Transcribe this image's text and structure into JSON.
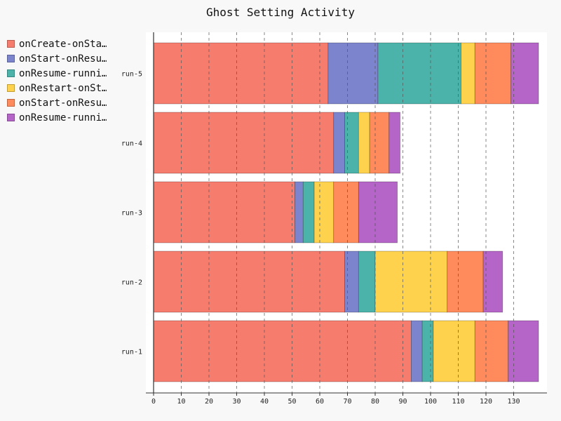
{
  "chart_data": {
    "type": "bar",
    "orientation": "horizontal",
    "stacked": true,
    "title": "Ghost Setting Activity",
    "categories": [
      "run-1",
      "run-2",
      "run-3",
      "run-4",
      "run-5"
    ],
    "series": [
      {
        "name": "onCreate-onStart",
        "legend_label": "onCreate-onSta…",
        "color": "#f67c6e",
        "values": [
          93,
          69,
          51,
          65,
          63
        ]
      },
      {
        "name": "onStart-onResume",
        "legend_label": "onStart-onResu…",
        "color": "#7b84cc",
        "values": [
          4,
          5,
          3,
          4,
          18
        ]
      },
      {
        "name": "onResume-running",
        "legend_label": "onResume-runni…",
        "color": "#4bb3aa",
        "values": [
          4,
          6,
          4,
          5,
          30
        ]
      },
      {
        "name": "onRestart-onStart",
        "legend_label": "onRestart-onSt…",
        "color": "#ffd24d",
        "values": [
          15,
          26,
          7,
          4,
          5
        ]
      },
      {
        "name": "onStart-onResume",
        "legend_label": "onStart-onResu…",
        "color": "#ff8a5c",
        "values": [
          12,
          13,
          9,
          7,
          13
        ]
      },
      {
        "name": "onResume-running",
        "legend_label": "onResume-runni…",
        "color": "#b465c7",
        "values": [
          11,
          7,
          14,
          4,
          10
        ]
      }
    ],
    "xlim": [
      0,
      140
    ],
    "xticks": [
      0,
      10,
      20,
      30,
      40,
      50,
      60,
      70,
      80,
      90,
      100,
      110,
      120,
      130
    ],
    "grid": "vertical-dashed",
    "legend_position": "top-left"
  }
}
